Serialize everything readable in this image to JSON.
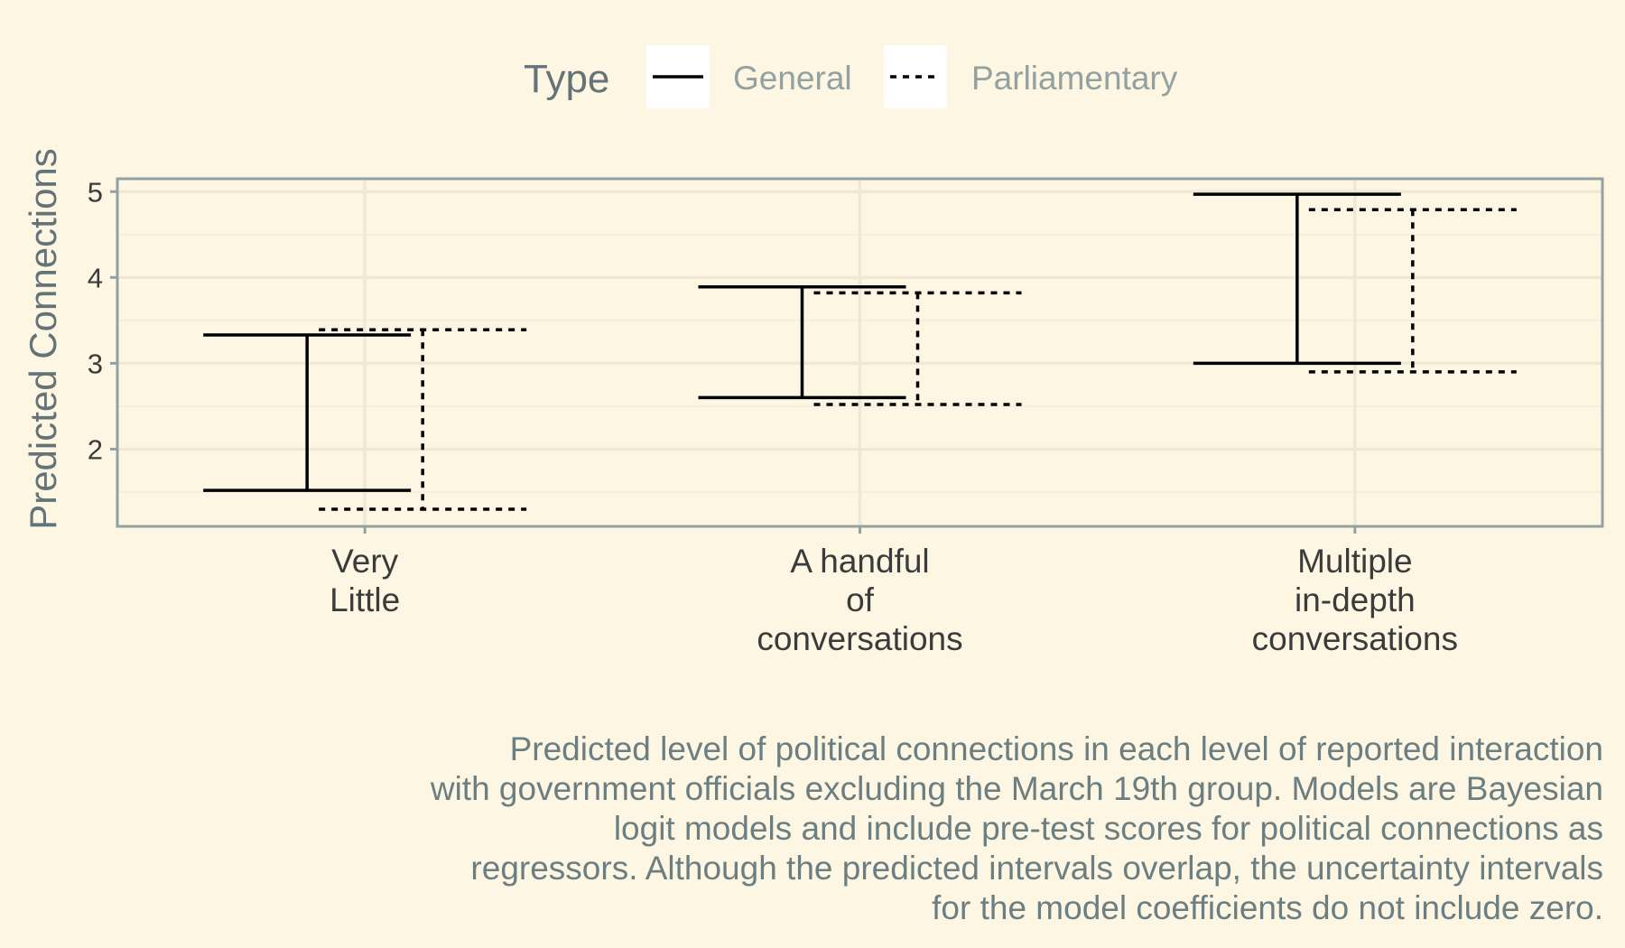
{
  "chart_data": {
    "type": "errorbar",
    "title": "",
    "xlabel": "",
    "ylabel": "Predicted Connections",
    "ylim": [
      1.1,
      5.15
    ],
    "yticks": [
      2,
      3,
      4,
      5
    ],
    "grid": true,
    "legend": {
      "title": "Type",
      "placement": "top",
      "entries": [
        {
          "label": "General",
          "line_style": "solid"
        },
        {
          "label": "Parliamentary",
          "line_style": "dotted"
        }
      ]
    },
    "categories": [
      [
        "Very",
        "Little"
      ],
      [
        "A handful",
        "of",
        "conversations"
      ],
      [
        "Multiple",
        "in-depth",
        "conversations"
      ]
    ],
    "series": [
      {
        "name": "General",
        "line_style": "solid",
        "lower": [
          1.52,
          2.6,
          3.0
        ],
        "upper": [
          3.33,
          3.89,
          4.97
        ]
      },
      {
        "name": "Parliamentary",
        "line_style": "dotted",
        "lower": [
          1.3,
          2.52,
          2.9
        ],
        "upper": [
          3.39,
          3.82,
          4.79
        ]
      }
    ],
    "caption": "Predicted level of political connections in each level of reported interaction\nwith government officials excluding the March 19th group. Models are Bayesian\nlogit models and include pre-test scores for political connections as\nregressors. Although the predicted intervals overlap, the uncertainty intervals\nfor the model coefficients do not include zero."
  },
  "colors": {
    "background": "#FDF6E3",
    "panel_border": "#93A1A1",
    "grid_major": "#EEE8D5",
    "grid_minor": "#F3EEDD",
    "line": "#000000",
    "legend_key_bg": "#FFFFFF"
  }
}
